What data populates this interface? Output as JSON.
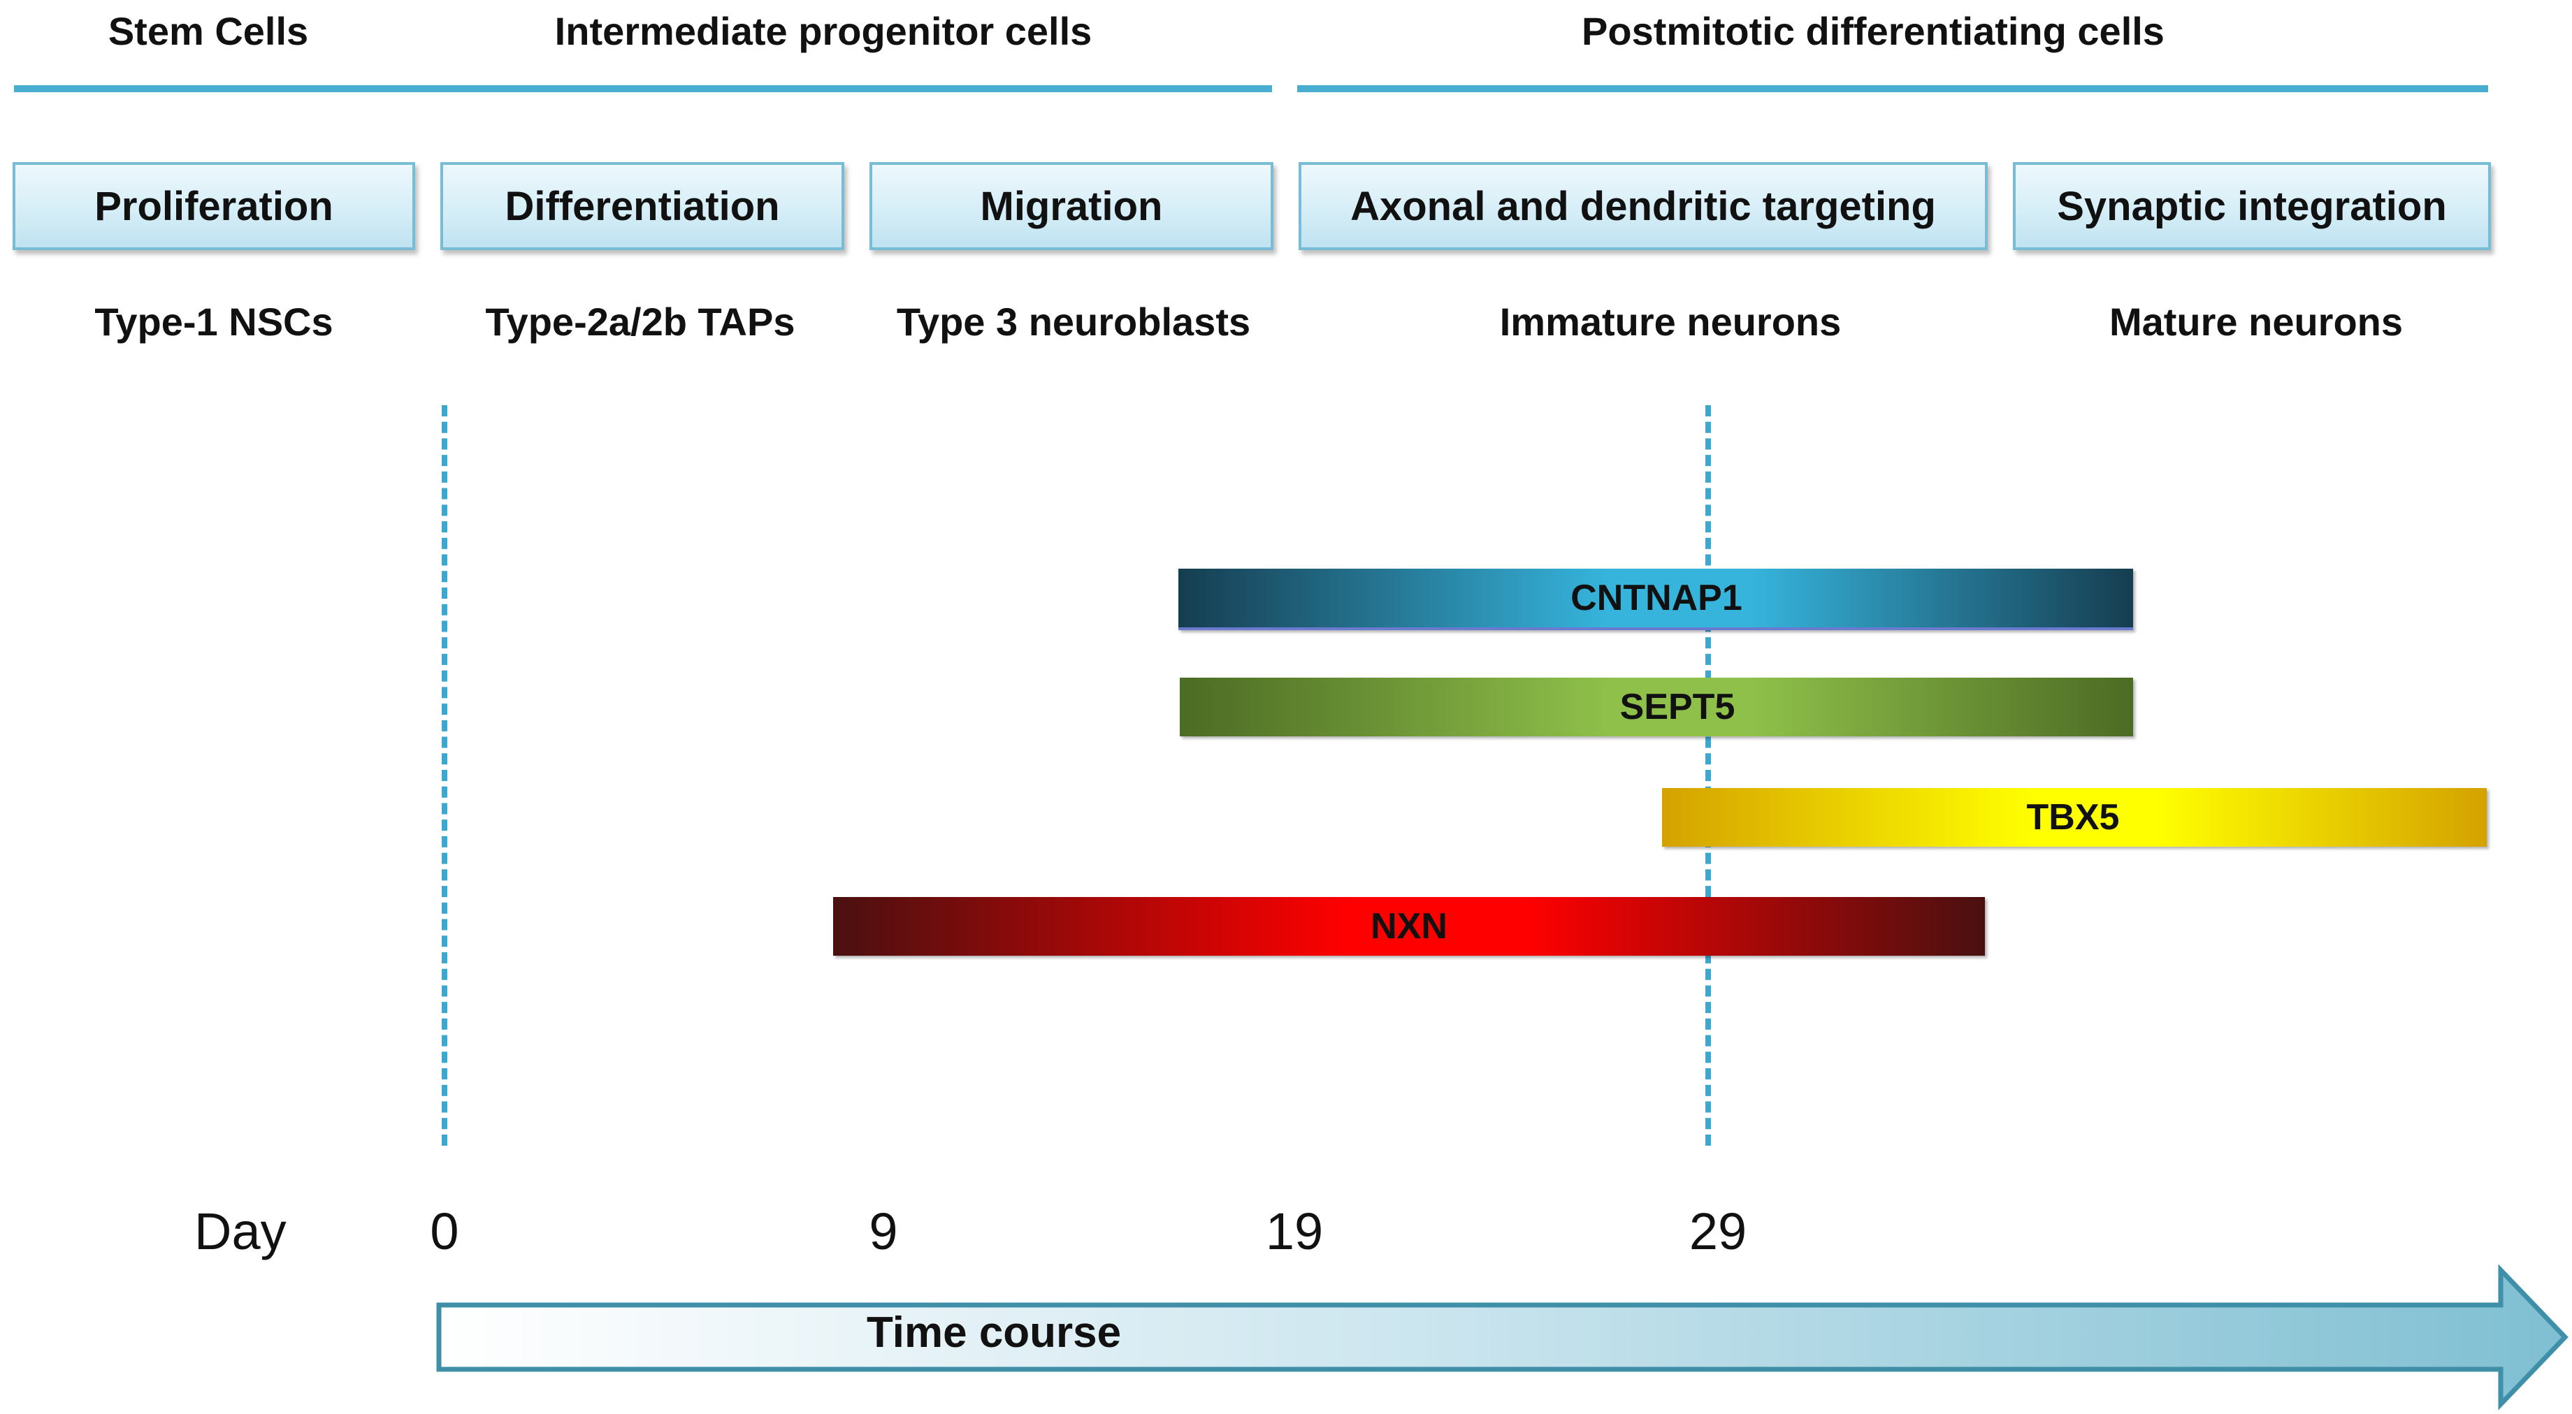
{
  "headers": {
    "stem": "Stem Cells",
    "intermediate": "Intermediate progenitor cells",
    "postmitotic": "Postmitotic differentiating cells"
  },
  "phases": [
    "Proliferation",
    "Differentiation",
    "Migration",
    "Axonal and dendritic targeting",
    "Synaptic integration"
  ],
  "cell_types": [
    "Type-1 NSCs",
    "Type-2a/2b TAPs",
    "Type 3 neuroblasts",
    "Immature neurons",
    "Mature neurons"
  ],
  "genes": [
    {
      "name": "CNTNAP1",
      "color": "#36b4dc",
      "edge_color": "#163d50"
    },
    {
      "name": "SEPT5",
      "color": "#8fc04a",
      "edge_color": "#4c6b24"
    },
    {
      "name": "TBX5",
      "color": "#ffff00",
      "edge_color": "#d4a200"
    },
    {
      "name": "NXN",
      "color": "#ff0000",
      "edge_color": "#4a1010"
    }
  ],
  "timeline": {
    "day_label": "Day",
    "days": [
      "0",
      "9",
      "19",
      "29"
    ],
    "arrow_label": "Time course"
  },
  "colors": {
    "accent": "#4aaed0",
    "phase_border": "#78bcd6",
    "arrow_fill": "#7fbfd2"
  }
}
